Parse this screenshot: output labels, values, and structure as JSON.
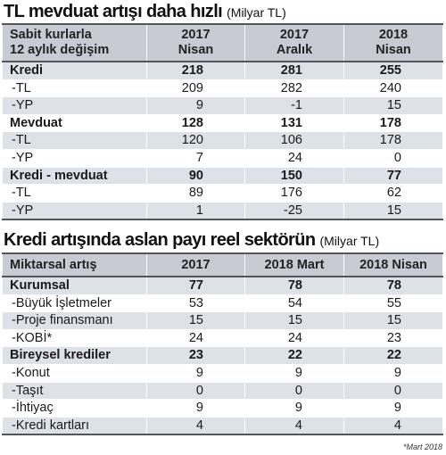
{
  "table1": {
    "title": "TL mevduat artışı daha hızlı",
    "unit": "(Milyar TL)",
    "header": {
      "label_line1": "Sabit kurlarla",
      "label_line2": "12 aylık değişim",
      "cols": [
        {
          "line1": "2017",
          "line2": "Nisan"
        },
        {
          "line1": "2017",
          "line2": "Aralık"
        },
        {
          "line1": "2018",
          "line2": "Nisan"
        }
      ]
    },
    "rows": [
      {
        "label": "Kredi",
        "values": [
          "218",
          "281",
          "255"
        ],
        "bold": true
      },
      {
        "label": "-TL",
        "values": [
          "209",
          "282",
          "240"
        ],
        "bold": false
      },
      {
        "label": "-YP",
        "values": [
          "9",
          "-1",
          "15"
        ],
        "bold": false
      },
      {
        "label": "Mevduat",
        "values": [
          "128",
          "131",
          "178"
        ],
        "bold": true
      },
      {
        "label": "-TL",
        "values": [
          "120",
          "106",
          "178"
        ],
        "bold": false
      },
      {
        "label": "-YP",
        "values": [
          "7",
          "24",
          "0"
        ],
        "bold": false
      },
      {
        "label": "Kredi - mevduat",
        "values": [
          "90",
          "150",
          "77"
        ],
        "bold": true
      },
      {
        "label": "-TL",
        "values": [
          "89",
          "176",
          "62"
        ],
        "bold": false
      },
      {
        "label": "-YP",
        "values": [
          "1",
          "-25",
          "15"
        ],
        "bold": false
      }
    ]
  },
  "table2": {
    "title": "Kredi artışında aslan payı reel sektörün",
    "unit": "(Milyar TL)",
    "header": {
      "label": "Miktarsal artış",
      "cols": [
        "2017",
        "2018 Mart",
        "2018 Nisan"
      ]
    },
    "rows": [
      {
        "label": "Kurumsal",
        "values": [
          "77",
          "78",
          "78"
        ],
        "bold": true
      },
      {
        "label": "-Büyük İşletmeler",
        "values": [
          "53",
          "54",
          "55"
        ],
        "bold": false
      },
      {
        "label": "-Proje finansmanı",
        "values": [
          "15",
          "15",
          "15"
        ],
        "bold": false
      },
      {
        "label": "-KOBİ*",
        "values": [
          "24",
          "24",
          "23"
        ],
        "bold": false
      },
      {
        "label": "Bireysel krediler",
        "values": [
          "23",
          "22",
          "22"
        ],
        "bold": true
      },
      {
        "label": "-Konut",
        "values": [
          "9",
          "9",
          "9"
        ],
        "bold": false
      },
      {
        "label": "-Taşıt",
        "values": [
          "0",
          "0",
          "0"
        ],
        "bold": false
      },
      {
        "label": "-İhtiyaç",
        "values": [
          "9",
          "9",
          "9"
        ],
        "bold": false
      },
      {
        "label": "-Kredi kartları",
        "values": [
          "4",
          "4",
          "4"
        ],
        "bold": false
      }
    ]
  },
  "footnote": "*Mart 2018"
}
